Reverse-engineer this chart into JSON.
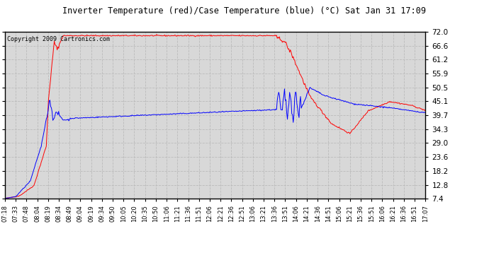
{
  "title": "Inverter Temperature (red)/Case Temperature (blue) (°C) Sat Jan 31 17:09",
  "copyright": "Copyright 2009 Cartronics.com",
  "y_ticks": [
    7.4,
    12.8,
    18.2,
    23.6,
    29.0,
    34.3,
    39.7,
    45.1,
    50.5,
    55.9,
    61.2,
    66.6,
    72.0
  ],
  "y_min": 7.4,
  "y_max": 72.0,
  "background_color": "#ffffff",
  "plot_bg_color": "#d8d8d8",
  "grid_color": "#bbbbbb",
  "red_color": "#ff0000",
  "blue_color": "#0000ff",
  "x_labels": [
    "07:18",
    "07:33",
    "07:48",
    "08:04",
    "08:19",
    "08:34",
    "08:49",
    "09:04",
    "09:19",
    "09:34",
    "09:50",
    "10:05",
    "10:20",
    "10:35",
    "10:50",
    "11:06",
    "11:21",
    "11:36",
    "11:51",
    "12:06",
    "12:21",
    "12:36",
    "12:51",
    "13:06",
    "13:21",
    "13:36",
    "13:51",
    "14:06",
    "14:21",
    "14:36",
    "14:51",
    "15:06",
    "15:21",
    "15:36",
    "15:51",
    "16:06",
    "16:21",
    "16:36",
    "16:51",
    "17:07"
  ]
}
